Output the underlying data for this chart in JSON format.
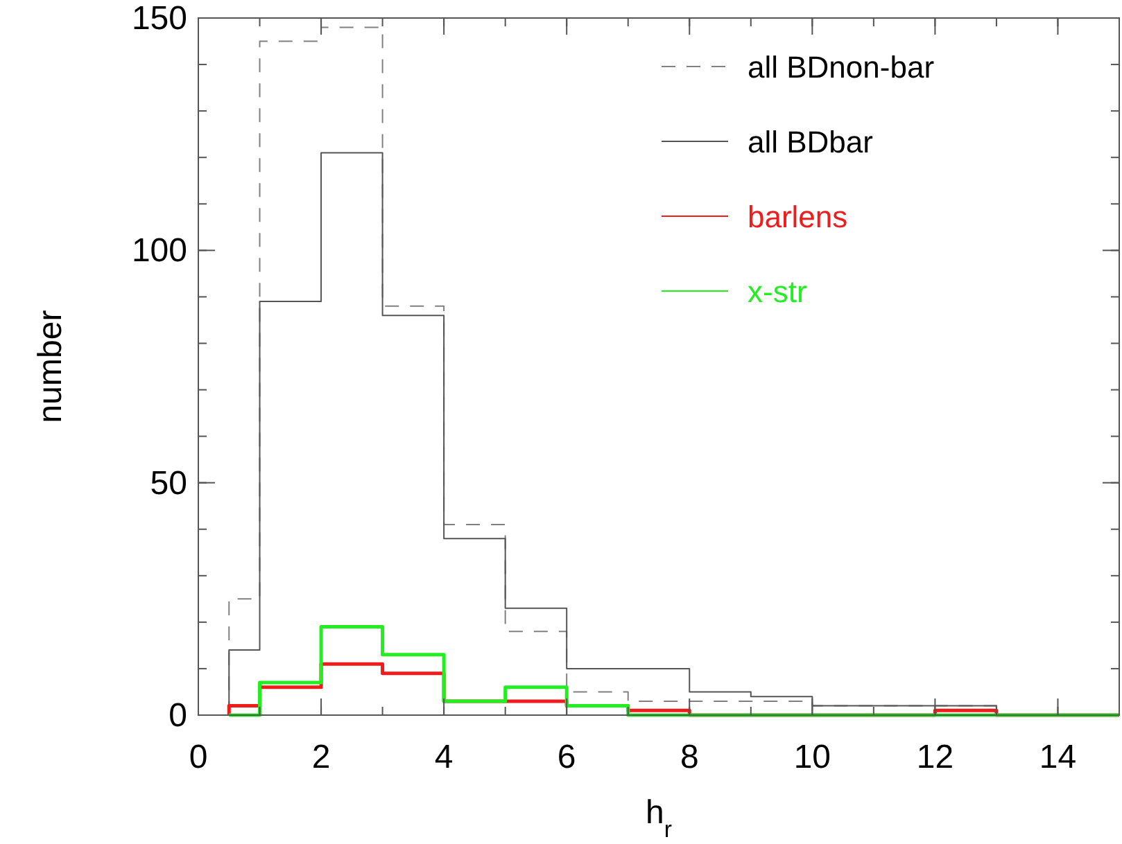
{
  "chart_data": {
    "type": "histogram",
    "xlabel": "h$_{r}$",
    "ylabel": "number",
    "bins": [
      0.5,
      1,
      2,
      3,
      4,
      5,
      6,
      7,
      8,
      9,
      10,
      11,
      12,
      13,
      14,
      15
    ],
    "series": [
      {
        "name": "all BDnon-bar",
        "color": "#808080",
        "line_style": "dashed",
        "values": [
          25,
          145,
          148,
          88,
          41,
          18,
          5,
          3,
          3,
          3,
          2,
          2,
          2,
          0,
          0
        ]
      },
      {
        "name": "all BDbar",
        "color": "#555555",
        "line_style": "solid",
        "values": [
          14,
          89,
          121,
          86,
          38,
          23,
          10,
          10,
          5,
          4,
          2,
          2,
          2,
          0,
          0
        ]
      },
      {
        "name": "barlens",
        "color": "#ee1c1c",
        "line_style": "solid",
        "values": [
          2,
          6,
          11,
          9,
          3,
          3,
          2,
          1,
          0,
          0,
          0,
          0,
          1,
          0,
          0
        ]
      },
      {
        "name": "x-str",
        "color": "#22ee22",
        "line_style": "solid",
        "values": [
          0,
          7,
          19,
          13,
          3,
          6,
          2,
          0,
          0,
          0,
          0,
          0,
          0,
          0,
          0
        ]
      }
    ],
    "xlim": [
      0,
      15
    ],
    "xticks": [
      0,
      2,
      4,
      6,
      8,
      10,
      12,
      14
    ],
    "ylim": [
      0,
      150
    ],
    "yticks": [
      0,
      50,
      100,
      150
    ],
    "grid": false,
    "legend": "top right"
  }
}
